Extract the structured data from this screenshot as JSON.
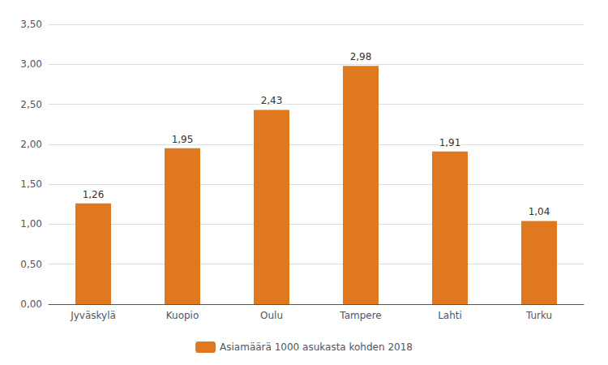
{
  "chart_data": {
    "type": "bar",
    "categories": [
      "Jyväskylä",
      "Kuopio",
      "Oulu",
      "Tampere",
      "Lahti",
      "Turku"
    ],
    "series": [
      {
        "name": "Asiamäärä 1000 asukasta kohden 2018",
        "color": "#E07820",
        "values": [
          1.26,
          1.95,
          2.43,
          2.98,
          1.91,
          1.04
        ],
        "value_labels": [
          "1,26",
          "1,95",
          "2,43",
          "2,98",
          "1,91",
          "1,04"
        ]
      }
    ],
    "ylim": [
      0,
      3.5
    ],
    "yticks": [
      {
        "value": 0.0,
        "label": "0,00"
      },
      {
        "value": 0.5,
        "label": "0,50"
      },
      {
        "value": 1.0,
        "label": "1,00"
      },
      {
        "value": 1.5,
        "label": "1,50"
      },
      {
        "value": 2.0,
        "label": "2,00"
      },
      {
        "value": 2.5,
        "label": "2,50"
      },
      {
        "value": 3.0,
        "label": "3,00"
      },
      {
        "value": 3.5,
        "label": "3,50"
      }
    ],
    "grid": true,
    "legend": "bottom",
    "data_labels": true
  }
}
